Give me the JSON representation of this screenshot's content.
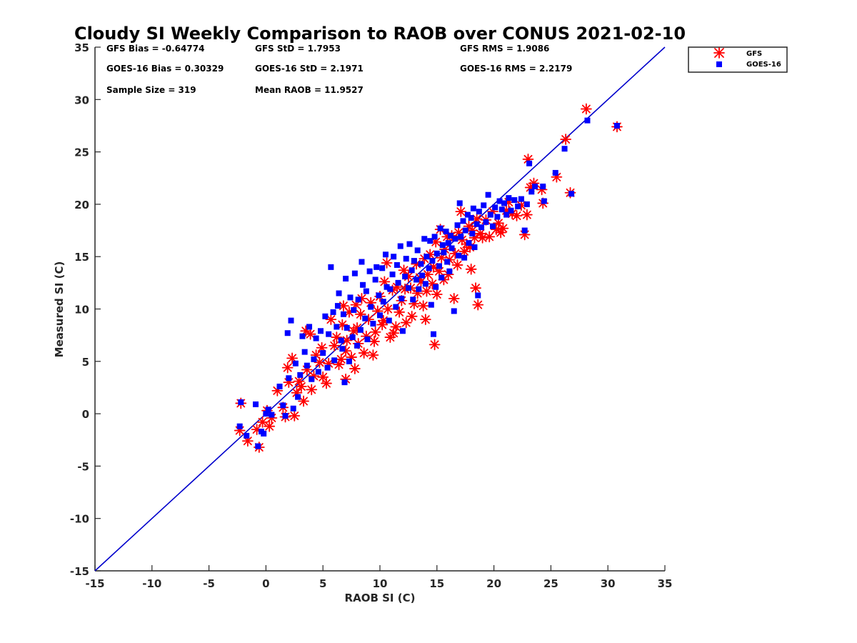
{
  "chart_data": {
    "type": "scatter",
    "title": "Cloudy SI Weekly Comparison to RAOB over CONUS 2021-02-10",
    "xlabel": "RAOB SI (C)",
    "ylabel": "Measured SI (C)",
    "xlim": [
      -15,
      35
    ],
    "ylim": [
      -15,
      35
    ],
    "xticks": [
      -15,
      -10,
      -5,
      0,
      5,
      10,
      15,
      20,
      25,
      30,
      35
    ],
    "yticks": [
      -15,
      -10,
      -5,
      0,
      5,
      10,
      15,
      20,
      25,
      30,
      35
    ],
    "reference_line": {
      "name": "1:1 line",
      "from": [
        -15,
        -15
      ],
      "to": [
        35,
        35
      ],
      "color": "#0000cc"
    },
    "stats": {
      "gfs_bias": "GFS Bias = -0.64774",
      "gfs_std": "GFS StD = 1.7953",
      "gfs_rms": "GFS RMS = 1.9086",
      "goes_bias": "GOES-16 Bias = 0.30329",
      "goes_std": "GOES-16 StD = 2.1971",
      "goes_rms": "GOES-16 RMS = 2.2179",
      "sample_size": "Sample Size = 319",
      "mean_raob": "Mean RAOB = 11.9527"
    },
    "legend": [
      {
        "label": "GFS",
        "marker": "asterisk",
        "color": "#ff0000"
      },
      {
        "label": "GOES-16",
        "marker": "square",
        "color": "#0000ff"
      }
    ],
    "series": [
      {
        "name": "GFS",
        "color": "#ff0000",
        "marker": "asterisk",
        "points": [
          [
            -2.3,
            -1.6
          ],
          [
            -2.2,
            1.0
          ],
          [
            -1.6,
            -2.6
          ],
          [
            -0.8,
            -1.5
          ],
          [
            -0.6,
            -3.2
          ],
          [
            -0.3,
            -0.8
          ],
          [
            0.1,
            0.3
          ],
          [
            0.3,
            -1.2
          ],
          [
            0.5,
            -0.4
          ],
          [
            1.0,
            2.2
          ],
          [
            1.5,
            0.6
          ],
          [
            1.7,
            -0.3
          ],
          [
            1.9,
            4.4
          ],
          [
            2.0,
            3.0
          ],
          [
            2.3,
            5.3
          ],
          [
            2.5,
            -0.2
          ],
          [
            2.7,
            2.0
          ],
          [
            2.9,
            3.1
          ],
          [
            3.1,
            2.6
          ],
          [
            3.3,
            1.2
          ],
          [
            3.5,
            7.9
          ],
          [
            3.6,
            4.2
          ],
          [
            3.9,
            7.6
          ],
          [
            4.0,
            2.3
          ],
          [
            4.2,
            3.6
          ],
          [
            4.4,
            5.6
          ],
          [
            4.7,
            4.9
          ],
          [
            4.9,
            6.3
          ],
          [
            5.0,
            3.5
          ],
          [
            5.3,
            2.9
          ],
          [
            5.5,
            4.8
          ],
          [
            5.7,
            9.0
          ],
          [
            6.0,
            6.5
          ],
          [
            6.2,
            7.3
          ],
          [
            6.4,
            4.7
          ],
          [
            6.6,
            5.2
          ],
          [
            6.7,
            8.5
          ],
          [
            6.8,
            10.3
          ],
          [
            7.0,
            3.3
          ],
          [
            7.0,
            6.0
          ],
          [
            7.1,
            7.0
          ],
          [
            7.3,
            9.7
          ],
          [
            7.5,
            5.4
          ],
          [
            7.7,
            7.9
          ],
          [
            7.8,
            4.3
          ],
          [
            7.9,
            10.4
          ],
          [
            8.0,
            8.2
          ],
          [
            8.1,
            6.7
          ],
          [
            8.3,
            9.5
          ],
          [
            8.4,
            11.0
          ],
          [
            8.6,
            5.8
          ],
          [
            8.8,
            7.4
          ],
          [
            9.0,
            9.0
          ],
          [
            9.2,
            10.6
          ],
          [
            9.4,
            5.6
          ],
          [
            9.5,
            6.9
          ],
          [
            9.6,
            7.8
          ],
          [
            9.8,
            9.8
          ],
          [
            10.0,
            11.2
          ],
          [
            10.2,
            8.5
          ],
          [
            10.3,
            8.9
          ],
          [
            10.4,
            12.6
          ],
          [
            10.6,
            14.4
          ],
          [
            10.7,
            10.0
          ],
          [
            10.9,
            7.3
          ],
          [
            11.1,
            11.8
          ],
          [
            11.2,
            7.7
          ],
          [
            11.4,
            8.3
          ],
          [
            11.5,
            12.1
          ],
          [
            11.7,
            9.7
          ],
          [
            11.9,
            10.8
          ],
          [
            12.1,
            13.7
          ],
          [
            12.2,
            11.9
          ],
          [
            12.3,
            8.7
          ],
          [
            12.5,
            13.1
          ],
          [
            12.7,
            12.0
          ],
          [
            12.8,
            9.3
          ],
          [
            13.0,
            10.5
          ],
          [
            13.2,
            14.3
          ],
          [
            13.3,
            11.5
          ],
          [
            13.5,
            13.0
          ],
          [
            13.6,
            12.6
          ],
          [
            13.8,
            10.3
          ],
          [
            13.9,
            14.8
          ],
          [
            14.0,
            9.0
          ],
          [
            14.1,
            11.7
          ],
          [
            14.2,
            13.3
          ],
          [
            14.4,
            15.2
          ],
          [
            14.6,
            12.4
          ],
          [
            14.7,
            14.0
          ],
          [
            14.8,
            6.6
          ],
          [
            14.9,
            16.4
          ],
          [
            15.0,
            11.4
          ],
          [
            15.2,
            13.6
          ],
          [
            15.3,
            17.6
          ],
          [
            15.4,
            14.9
          ],
          [
            15.6,
            12.8
          ],
          [
            15.7,
            15.7
          ],
          [
            15.9,
            16.9
          ],
          [
            16.0,
            13.3
          ],
          [
            16.1,
            14.7
          ],
          [
            16.3,
            17.0
          ],
          [
            16.5,
            11.0
          ],
          [
            16.6,
            15.3
          ],
          [
            16.8,
            14.2
          ],
          [
            16.9,
            17.3
          ],
          [
            17.1,
            19.3
          ],
          [
            17.2,
            16.6
          ],
          [
            17.4,
            15.5
          ],
          [
            17.6,
            16.2
          ],
          [
            17.8,
            17.9
          ],
          [
            17.9,
            15.9
          ],
          [
            18.0,
            13.8
          ],
          [
            18.1,
            17.5
          ],
          [
            18.3,
            16.8
          ],
          [
            18.4,
            12.0
          ],
          [
            18.5,
            18.6
          ],
          [
            18.6,
            10.4
          ],
          [
            18.8,
            17.2
          ],
          [
            19.0,
            16.8
          ],
          [
            19.3,
            18.5
          ],
          [
            19.6,
            16.9
          ],
          [
            19.9,
            19.3
          ],
          [
            20.2,
            17.6
          ],
          [
            20.4,
            18.2
          ],
          [
            20.6,
            17.3
          ],
          [
            20.8,
            17.7
          ],
          [
            21.1,
            19.4
          ],
          [
            21.3,
            20.2
          ],
          [
            21.6,
            19.1
          ],
          [
            22.0,
            18.9
          ],
          [
            22.4,
            19.9
          ],
          [
            22.7,
            17.1
          ],
          [
            22.9,
            19.0
          ],
          [
            23.0,
            24.3
          ],
          [
            23.2,
            21.6
          ],
          [
            23.5,
            22.0
          ],
          [
            24.2,
            21.4
          ],
          [
            24.3,
            20.1
          ],
          [
            25.5,
            22.6
          ],
          [
            26.3,
            26.2
          ],
          [
            26.7,
            21.1
          ],
          [
            28.1,
            29.1
          ],
          [
            30.8,
            27.4
          ]
        ]
      },
      {
        "name": "GOES-16",
        "color": "#0000ff",
        "marker": "square",
        "points": [
          [
            -2.3,
            -1.2
          ],
          [
            -2.2,
            1.1
          ],
          [
            -1.7,
            -2.1
          ],
          [
            -0.9,
            0.9
          ],
          [
            -0.7,
            -3.1
          ],
          [
            -0.4,
            -1.7
          ],
          [
            -0.2,
            -1.9
          ],
          [
            0.0,
            0.0
          ],
          [
            0.2,
            0.4
          ],
          [
            0.5,
            -0.1
          ],
          [
            1.2,
            2.6
          ],
          [
            1.5,
            0.8
          ],
          [
            1.7,
            -0.2
          ],
          [
            1.9,
            7.7
          ],
          [
            2.0,
            3.4
          ],
          [
            2.2,
            8.9
          ],
          [
            2.4,
            0.5
          ],
          [
            2.6,
            4.8
          ],
          [
            2.8,
            1.6
          ],
          [
            3.0,
            3.7
          ],
          [
            3.2,
            7.4
          ],
          [
            3.4,
            5.9
          ],
          [
            3.6,
            4.6
          ],
          [
            3.8,
            8.3
          ],
          [
            4.0,
            3.3
          ],
          [
            4.2,
            5.2
          ],
          [
            4.4,
            7.2
          ],
          [
            4.6,
            4.0
          ],
          [
            4.8,
            7.9
          ],
          [
            5.0,
            5.8
          ],
          [
            5.2,
            9.3
          ],
          [
            5.4,
            4.4
          ],
          [
            5.5,
            7.6
          ],
          [
            5.7,
            14.0
          ],
          [
            5.9,
            9.7
          ],
          [
            6.0,
            5.1
          ],
          [
            6.2,
            8.3
          ],
          [
            6.3,
            10.3
          ],
          [
            6.4,
            11.5
          ],
          [
            6.6,
            7.0
          ],
          [
            6.7,
            6.2
          ],
          [
            6.8,
            9.5
          ],
          [
            6.9,
            3.0
          ],
          [
            7.0,
            12.9
          ],
          [
            7.1,
            8.2
          ],
          [
            7.3,
            5.0
          ],
          [
            7.4,
            11.1
          ],
          [
            7.6,
            7.3
          ],
          [
            7.7,
            9.9
          ],
          [
            7.8,
            13.4
          ],
          [
            8.0,
            6.5
          ],
          [
            8.1,
            10.9
          ],
          [
            8.3,
            8.0
          ],
          [
            8.4,
            14.5
          ],
          [
            8.5,
            12.3
          ],
          [
            8.7,
            9.1
          ],
          [
            8.8,
            11.7
          ],
          [
            8.9,
            7.1
          ],
          [
            9.1,
            13.6
          ],
          [
            9.2,
            10.2
          ],
          [
            9.4,
            8.6
          ],
          [
            9.6,
            12.8
          ],
          [
            9.7,
            14.0
          ],
          [
            9.9,
            11.3
          ],
          [
            10.0,
            9.4
          ],
          [
            10.2,
            13.9
          ],
          [
            10.3,
            10.7
          ],
          [
            10.5,
            15.2
          ],
          [
            10.6,
            12.1
          ],
          [
            10.8,
            8.9
          ],
          [
            10.9,
            11.9
          ],
          [
            11.1,
            13.3
          ],
          [
            11.2,
            15.0
          ],
          [
            11.4,
            10.2
          ],
          [
            11.5,
            14.2
          ],
          [
            11.6,
            12.5
          ],
          [
            11.8,
            16.0
          ],
          [
            11.9,
            11.0
          ],
          [
            12.0,
            7.9
          ],
          [
            12.2,
            13.1
          ],
          [
            12.3,
            14.8
          ],
          [
            12.5,
            12.0
          ],
          [
            12.6,
            16.2
          ],
          [
            12.8,
            13.7
          ],
          [
            12.9,
            10.9
          ],
          [
            13.0,
            14.6
          ],
          [
            13.2,
            12.8
          ],
          [
            13.3,
            15.6
          ],
          [
            13.4,
            11.9
          ],
          [
            13.6,
            14.3
          ],
          [
            13.7,
            13.2
          ],
          [
            13.9,
            16.7
          ],
          [
            14.0,
            12.4
          ],
          [
            14.1,
            15.0
          ],
          [
            14.3,
            13.9
          ],
          [
            14.4,
            16.5
          ],
          [
            14.5,
            10.4
          ],
          [
            14.6,
            14.6
          ],
          [
            14.7,
            7.6
          ],
          [
            14.8,
            16.9
          ],
          [
            14.9,
            12.1
          ],
          [
            15.0,
            15.3
          ],
          [
            15.2,
            14.1
          ],
          [
            15.3,
            17.7
          ],
          [
            15.4,
            13.0
          ],
          [
            15.5,
            16.1
          ],
          [
            15.6,
            15.4
          ],
          [
            15.8,
            17.4
          ],
          [
            15.9,
            14.5
          ],
          [
            16.0,
            16.3
          ],
          [
            16.1,
            13.6
          ],
          [
            16.2,
            17.0
          ],
          [
            16.3,
            15.8
          ],
          [
            16.5,
            9.8
          ],
          [
            16.6,
            16.7
          ],
          [
            16.8,
            18.0
          ],
          [
            16.9,
            15.1
          ],
          [
            17.0,
            20.1
          ],
          [
            17.1,
            16.9
          ],
          [
            17.3,
            18.4
          ],
          [
            17.4,
            14.9
          ],
          [
            17.5,
            17.5
          ],
          [
            17.7,
            19.0
          ],
          [
            17.8,
            16.3
          ],
          [
            18.0,
            18.7
          ],
          [
            18.1,
            17.2
          ],
          [
            18.2,
            19.6
          ],
          [
            18.3,
            15.9
          ],
          [
            18.5,
            18.1
          ],
          [
            18.6,
            11.3
          ],
          [
            18.7,
            19.3
          ],
          [
            18.9,
            17.8
          ],
          [
            19.1,
            19.9
          ],
          [
            19.3,
            18.3
          ],
          [
            19.5,
            20.9
          ],
          [
            19.7,
            19.0
          ],
          [
            19.9,
            17.9
          ],
          [
            20.1,
            19.7
          ],
          [
            20.3,
            18.8
          ],
          [
            20.5,
            20.3
          ],
          [
            20.7,
            19.5
          ],
          [
            20.9,
            20.1
          ],
          [
            21.1,
            19.0
          ],
          [
            21.3,
            20.6
          ],
          [
            21.5,
            19.4
          ],
          [
            21.8,
            20.4
          ],
          [
            22.1,
            19.8
          ],
          [
            22.4,
            20.5
          ],
          [
            22.7,
            17.5
          ],
          [
            22.9,
            20.0
          ],
          [
            23.1,
            23.9
          ],
          [
            23.3,
            21.2
          ],
          [
            23.6,
            21.7
          ],
          [
            24.3,
            21.7
          ],
          [
            24.4,
            20.3
          ],
          [
            25.4,
            23.0
          ],
          [
            26.2,
            25.3
          ],
          [
            26.8,
            21.0
          ],
          [
            28.2,
            28.0
          ],
          [
            30.8,
            27.5
          ]
        ]
      }
    ]
  }
}
